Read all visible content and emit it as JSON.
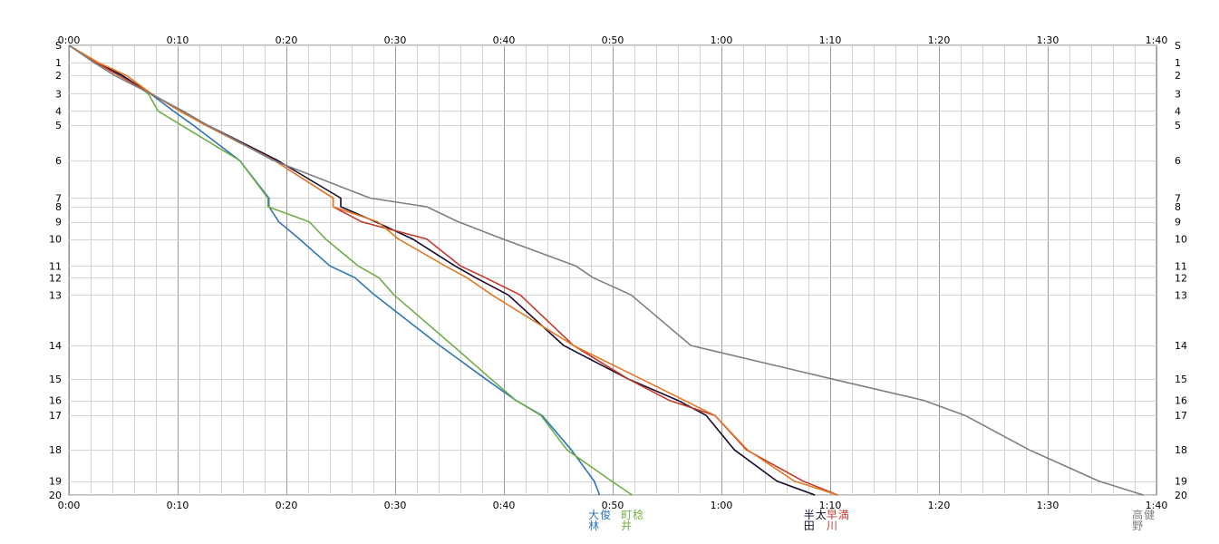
{
  "chart_data": {
    "type": "line",
    "title": "",
    "xlabel": "",
    "ylabel": "",
    "x_unit": "minutes",
    "xlim": [
      0,
      100
    ],
    "ylim_stations": [
      "S",
      "20"
    ],
    "x_tick_labels": [
      "0:00",
      "0:10",
      "0:20",
      "0:30",
      "0:40",
      "0:50",
      "1:00",
      "1:10",
      "1:20",
      "1:30",
      "1:40"
    ],
    "stations": [
      {
        "label": "S",
        "dist": 0
      },
      {
        "label": "1",
        "dist": 1.6
      },
      {
        "label": "2",
        "dist": 2.8
      },
      {
        "label": "3",
        "dist": 4.5
      },
      {
        "label": "4",
        "dist": 6.1
      },
      {
        "label": "5",
        "dist": 7.4
      },
      {
        "label": "6",
        "dist": 10.7
      },
      {
        "label": "7",
        "dist": 14.2
      },
      {
        "label": "8",
        "dist": 15.0
      },
      {
        "label": "9",
        "dist": 16.4
      },
      {
        "label": "10",
        "dist": 18.0
      },
      {
        "label": "11",
        "dist": 20.5
      },
      {
        "label": "12",
        "dist": 21.6
      },
      {
        "label": "13",
        "dist": 23.2
      },
      {
        "label": "14",
        "dist": 27.9
      },
      {
        "label": "15",
        "dist": 31.0
      },
      {
        "label": "16",
        "dist": 33.0
      },
      {
        "label": "17",
        "dist": 34.4
      },
      {
        "label": "18",
        "dist": 37.6
      },
      {
        "label": "19",
        "dist": 40.5
      },
      {
        "label": "20",
        "dist": 41.8
      }
    ],
    "grid": true,
    "grid_minor_minutes": 2,
    "series": [
      {
        "name": "大林 俊",
        "color": "#2e75b6",
        "times": [
          0,
          2.6,
          4.9,
          7.5,
          9.6,
          11.4,
          15.7,
          18.4,
          18.4,
          19.3,
          21.2,
          24.0,
          26.3,
          28.1,
          34.1,
          38.3,
          41.1,
          43.5,
          46.2,
          48.3,
          48.8
        ]
      },
      {
        "name": "町井 稔",
        "color": "#70ad47",
        "times": [
          0,
          2.5,
          4.9,
          7.3,
          8.2,
          10.3,
          15.7,
          18.3,
          18.3,
          22.1,
          23.6,
          26.6,
          28.5,
          29.9,
          35.3,
          38.8,
          41.1,
          43.4,
          45.8,
          49.9,
          51.8
        ]
      },
      {
        "name": "半田 太",
        "color": "#1a0a2e",
        "times": [
          0,
          2.5,
          4.9,
          7.5,
          10.4,
          12.7,
          19.2,
          25.0,
          25.0,
          28.2,
          31.6,
          35.5,
          37.4,
          40.4,
          45.5,
          51.4,
          56.0,
          58.6,
          61.2,
          65.1,
          68.6
        ]
      },
      {
        "name": "早川 満",
        "color": "#c0392b",
        "times": [
          0,
          2.5,
          4.6,
          7.6,
          10.2,
          12.7,
          18.9,
          24.3,
          24.3,
          26.9,
          32.9,
          36.0,
          38.3,
          41.5,
          46.4,
          51.4,
          55.2,
          59.4,
          62.3,
          67.5,
          70.7
        ]
      },
      {
        "name": "",
        "color": "#e07b28",
        "times": [
          0,
          2.7,
          5.3,
          7.6,
          10.2,
          12.5,
          18.9,
          24.3,
          24.3,
          28.4,
          30.3,
          34.6,
          36.6,
          38.9,
          46.4,
          52.6,
          56.6,
          59.4,
          62.4,
          66.7,
          70.7
        ]
      },
      {
        "name": "高野 健",
        "color": "#7f7f7f",
        "times": [
          0,
          2.3,
          4.2,
          7.5,
          10.5,
          12.7,
          18.8,
          27.7,
          32.9,
          35.8,
          39.9,
          46.6,
          48.2,
          51.7,
          57.2,
          70.1,
          78.6,
          82.4,
          88.3,
          94.7,
          98.8
        ]
      }
    ]
  }
}
